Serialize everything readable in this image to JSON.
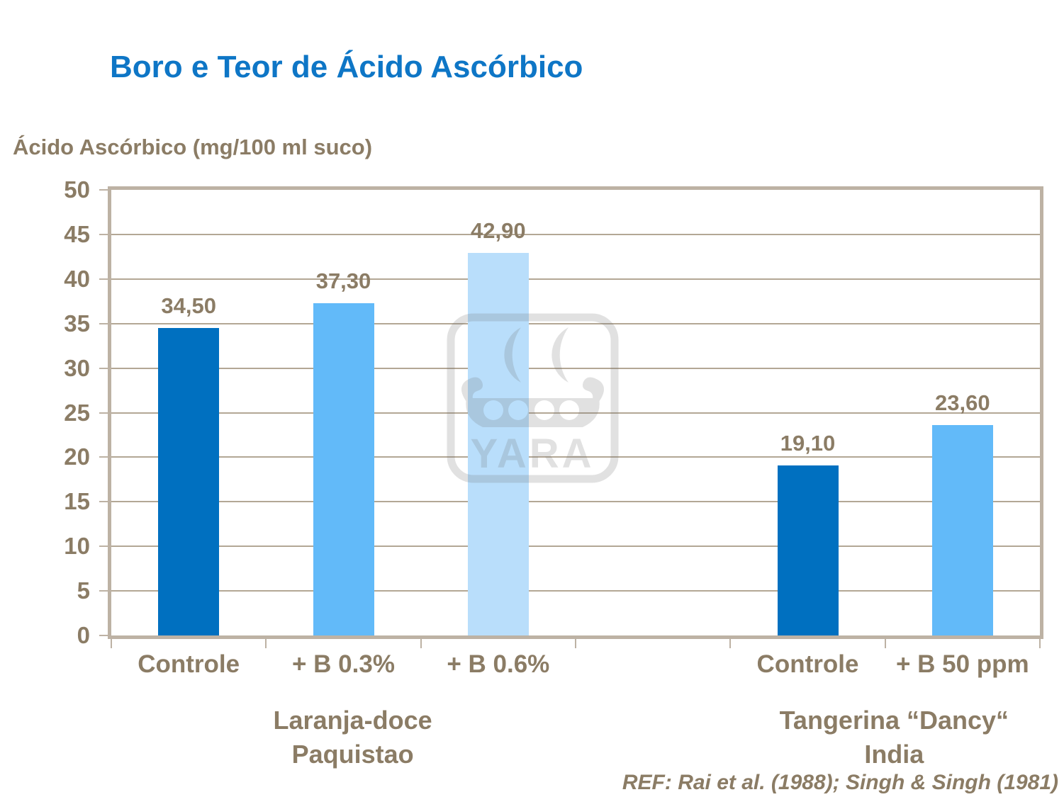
{
  "colors": {
    "title": "#0e76c6",
    "text": "#8b7c65",
    "axis": "#bdb2a4",
    "gridline": "#b3a795",
    "watermark": "#6e6e6e",
    "bar_dark_blue": "#0070c0",
    "bar_medium_blue": "#62baf9",
    "bar_light_blue": "#b9defb"
  },
  "chart_data": {
    "type": "bar",
    "title": "Boro e Teor de Ácido Ascórbico",
    "ylabel": "Ácido Ascórbico (mg/100 ml suco)",
    "xlabel": "",
    "ylim": [
      0,
      50
    ],
    "ytick_step": 5,
    "grid": true,
    "legend": "none",
    "categories": [
      "Controle",
      "+ B 0.3%",
      "+ B 0.6%",
      "",
      "Controle",
      "+ B 50 ppm"
    ],
    "values": [
      34.5,
      37.3,
      42.9,
      null,
      19.1,
      23.6
    ],
    "value_labels": [
      "34,50",
      "37,30",
      "42,90",
      null,
      "19,10",
      "23,60"
    ],
    "bar_colors": [
      "#0070c0",
      "#62baf9",
      "#b9defb",
      null,
      "#0070c0",
      "#62baf9"
    ],
    "groups": [
      {
        "line1": "Laranja-doce",
        "line2": "Paquistao",
        "center_frac": 0.26
      },
      {
        "line1": "Tangerina “Dancy“",
        "line2": "India",
        "center_frac": 0.843
      }
    ],
    "reference": "REF: Rai et al. (1988); Singh & Singh (1981)",
    "watermark_text": "YARA"
  }
}
